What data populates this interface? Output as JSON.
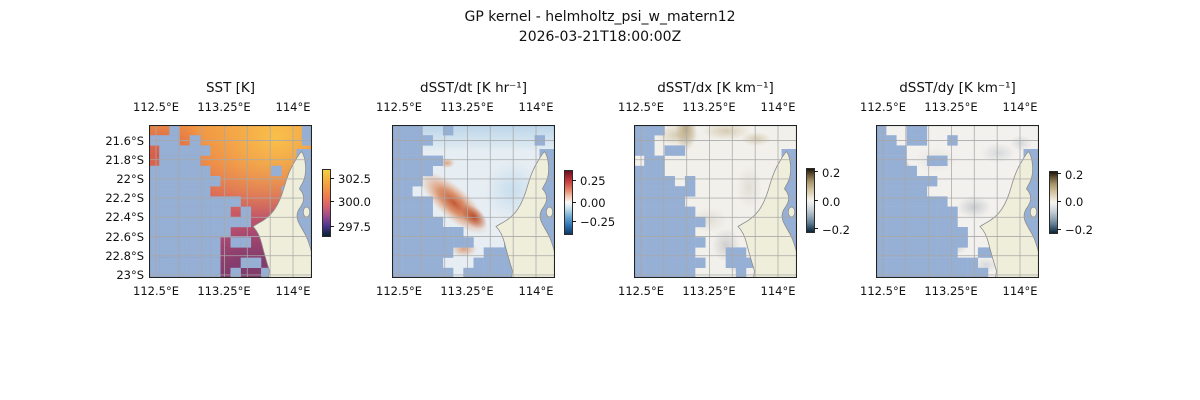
{
  "figure": {
    "title": "GP kernel - helmholtz_psi_w_matern12",
    "subtitle": "2026-03-21T18:00:00Z"
  },
  "map_style": {
    "masked_ocean_color": "#96afd4",
    "land_color": "#efeedb",
    "coastline_color": "#8c8c8c",
    "gridline_color": "#a8a8a8",
    "frame_color": "#222222"
  },
  "chart_data": [
    {
      "type": "heatmap",
      "title": "SST [K]",
      "x_tick_labels": [
        "112.5°E",
        "113.25°E",
        "114°E"
      ],
      "y_tick_labels": [
        "21.6°S",
        "21.8°S",
        "22°S",
        "22.2°S",
        "22.4°S",
        "22.6°S",
        "22.8°S",
        "23°S"
      ],
      "lon_range_deg_e": [
        112.42,
        114.2
      ],
      "lat_range_deg_s": [
        21.45,
        23.05
      ],
      "colorbar_tick_labels": [
        "302.5",
        "300.0",
        "297.5"
      ],
      "colorbar_ticks": [
        302.5,
        300.0,
        297.5
      ],
      "colorbar_tick_pos_pct": [
        14,
        49,
        86
      ],
      "colormap": "thermal (dark navy - purple - red-orange - yellow)",
      "field_summary": "SST near 302.5-303 K (orange-yellow) in northeast, ~300 K (orange) mid-domain, 297.5-299 K (magenta-purple) along southern coast; large cloud-masked region over western and southwestern ocean",
      "mask_rows": [
        "0010000000000001",
        "1110100000000001",
        "0111110000000000",
        "0111100000000000",
        "1111110000001000",
        "1111111000000000",
        "1111110000000100",
        "1111111110000000",
        "1111111101000000",
        "1111111111000000",
        "1111111100000000",
        "1111111011000000",
        "1111111000000000",
        "1111111001100000",
        "1111111010010000"
      ]
    },
    {
      "type": "heatmap",
      "title": "dSST/dt [K hr⁻¹]",
      "x_tick_labels": [
        "112.5°E",
        "113.25°E",
        "114°E"
      ],
      "y_tick_labels": [],
      "lon_range_deg_e": [
        112.42,
        114.2
      ],
      "lat_range_deg_s": [
        21.45,
        23.05
      ],
      "colorbar_tick_labels": [
        "0.25",
        "0.00",
        "−0.25"
      ],
      "colorbar_ticks": [
        0.25,
        0.0,
        -0.25
      ],
      "colorbar_tick_pos_pct": [
        16,
        51,
        81
      ],
      "colormap": "RdBu_r (blue - white - red)",
      "field_summary": "Warming band of +0.1 to +0.3 K/hr running NW-SE through the center toward the coast; weak cooling (-0.05 to -0.1) across the north; masked west and south",
      "mask_rows": [
        "1110010000000000",
        "1111000000000010",
        "1110000000000000",
        "1111100000000000",
        "1111000000000000",
        "1110000000000000",
        "1100000000000000",
        "1111000000000000",
        "1111000000000000",
        "1111100000000000",
        "1111111000000000",
        "1111111100011000",
        "1111110001111100",
        "1111100011111110",
        "1111110111111111"
      ]
    },
    {
      "type": "heatmap",
      "title": "dSST/dx [K km⁻¹]",
      "x_tick_labels": [
        "112.5°E",
        "113.25°E",
        "114°E"
      ],
      "y_tick_labels": [],
      "lon_range_deg_e": [
        112.42,
        114.2
      ],
      "lat_range_deg_s": [
        21.45,
        23.05
      ],
      "colorbar_tick_labels": [
        "0.2",
        "0.0",
        "−0.2"
      ],
      "colorbar_ticks": [
        0.2,
        0.0,
        -0.2
      ],
      "colorbar_tick_pos_pct": [
        6,
        52,
        96
      ],
      "colormap": "brown - white - blue diverging",
      "field_summary": "Gradient mostly near 0 (white); weak positive tan patches (+0.05 to +0.1) along the northern edge and faint gray streaks near the southern coast; masked strip along the west",
      "mask_rows": [
        "1110000000000000",
        "1100000000000000",
        "1101100000000000",
        "0110000000000000",
        "1110000000000000",
        "1111010000000000",
        "1111110000000000",
        "1111100000000000",
        "1111110000000000",
        "1111111000000000",
        "1111110000000000",
        "1111111000000000",
        "1111110001100000",
        "1111111001110000",
        "1111110000100000"
      ]
    },
    {
      "type": "heatmap",
      "title": "dSST/dy [K km⁻¹]",
      "x_tick_labels": [
        "112.5°E",
        "113.25°E",
        "114°E"
      ],
      "y_tick_labels": [],
      "lon_range_deg_e": [
        112.42,
        114.2
      ],
      "lat_range_deg_s": [
        21.45,
        23.05
      ],
      "colorbar_tick_labels": [
        "0.2",
        "0.0",
        "−0.2"
      ],
      "colorbar_ticks": [
        0.2,
        0.0,
        -0.2
      ],
      "colorbar_tick_pos_pct": [
        4,
        49,
        96
      ],
      "colormap": "brown - white - blue diverging",
      "field_summary": "Gradient mostly near 0 (white) with faint gray negative patches (-0.02 to -0.05) mid-domain and near the coast; masked over western half of ocean",
      "mask_rows": [
        "1001100000000000",
        "1101100100000000",
        "1110000000000000",
        "1110011000000000",
        "1111000000000000",
        "1111110000000000",
        "1111100000000000",
        "1111111000000000",
        "1111111100000000",
        "1111111100000000",
        "1111111110000000",
        "1111111110000000",
        "1111111100110000",
        "1111111111000000",
        "1111111111100000"
      ]
    }
  ]
}
